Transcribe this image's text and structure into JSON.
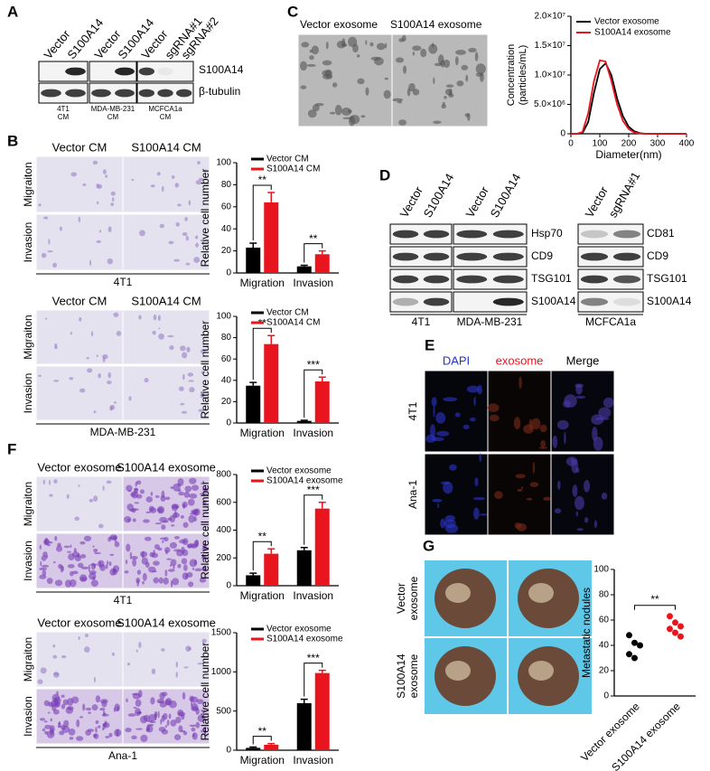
{
  "panel_labels": [
    "A",
    "B",
    "C",
    "D",
    "E",
    "F",
    "G"
  ],
  "panel_a": {
    "columns": [
      "Vector",
      "S100A14",
      "Vector",
      "S100A14",
      "Vector",
      "sgRNA#1",
      "sgRNA#2"
    ],
    "rows": [
      "S100A14",
      "β-tubulin"
    ],
    "groups": [
      [
        "4T1",
        "CM"
      ],
      [
        "MDA-MB-231",
        "CM"
      ],
      [
        "MCFCA1a",
        "CM"
      ]
    ]
  },
  "panel_b": [
    {
      "columns": [
        "Vector CM",
        "S100A14 CM"
      ],
      "rows": [
        "Migraiton",
        "Invasion"
      ],
      "cell": "4T1"
    },
    {
      "columns": [
        "Vector CM",
        "S100A14 CM"
      ],
      "rows": [
        "Migraiton",
        "Invasion"
      ],
      "cell": "MDA-MB-231"
    }
  ],
  "panel_c": {
    "images": [
      "Vector exosome",
      "S100A14 exosome"
    ]
  },
  "panel_d": [
    {
      "columns": [
        "Vector",
        "S100A14",
        "Vector",
        "S100A14"
      ],
      "rows": [
        "Hsp70",
        "CD9",
        "TSG101",
        "S100A14"
      ],
      "cells": [
        "4T1",
        "MDA-MB-231"
      ]
    },
    {
      "columns": [
        "Vector",
        "sgRNA#1"
      ],
      "rows": [
        "CD81",
        "CD9",
        "TSG101",
        "S100A14"
      ],
      "cells": [
        "MCFCA1a"
      ]
    }
  ],
  "panel_e": {
    "columns": [
      "DAPI",
      "exosome",
      "Merge"
    ],
    "rows": [
      "4T1",
      "Ana-1"
    ]
  },
  "panel_f": [
    {
      "columns": [
        "Vector exosome",
        "S100A14 exosome"
      ],
      "rows": [
        "Migraiton",
        "Invasion"
      ],
      "cell": "4T1"
    },
    {
      "columns": [
        "Vector exosome",
        "S100A14 exosome"
      ],
      "rows": [
        "Migraiton",
        "Invasion"
      ],
      "cell": "Ana-1"
    }
  ],
  "panel_g": {
    "rows": [
      [
        "Vector",
        "exosome"
      ],
      [
        "S100A14",
        "exosome"
      ]
    ]
  },
  "chart_data": [
    {
      "type": "line",
      "xlabel": "Diameter(nm)",
      "ylabel": [
        "Concentration",
        "(particles/mL)"
      ],
      "legend": "upper left",
      "x": [
        0,
        20,
        40,
        60,
        80,
        100,
        120,
        140,
        160,
        180,
        200,
        220,
        240,
        260,
        280,
        300,
        320,
        340,
        360,
        380,
        400
      ],
      "series": [
        {
          "name": "Vector exosome",
          "color": "#000000",
          "values": [
            0,
            0,
            100000,
            2000000,
            7000000,
            11000000,
            12000000,
            10000000,
            6000000,
            3000000,
            1200000,
            400000,
            100000,
            0,
            0,
            0,
            0,
            0,
            0,
            0,
            0
          ]
        },
        {
          "name": "S100A14  exosome",
          "color": "#e8141e",
          "values": [
            0,
            0,
            300000,
            3500000,
            9000000,
            12500000,
            12300000,
            9000000,
            5000000,
            2200000,
            800000,
            200000,
            50000,
            0,
            0,
            0,
            0,
            0,
            0,
            0,
            0
          ]
        }
      ],
      "xlim": [
        0,
        400
      ],
      "xticks": [
        0,
        100,
        200,
        300,
        400
      ],
      "ylim": [
        0,
        20000000
      ],
      "yticks": [
        0,
        {
          "value": 5000000,
          "label": "5.0×10⁶"
        },
        {
          "value": 10000000,
          "label": "1.0×10⁷"
        },
        {
          "value": 15000000,
          "label": "1.5×10⁷"
        },
        {
          "value": 20000000,
          "label": "2.0×10⁷"
        }
      ]
    },
    {
      "type": "bar",
      "ylabel": "Relative cell number",
      "legend": "upper left",
      "categories": [
        "Migration",
        "Invasion"
      ],
      "series": [
        {
          "name": "Vector CM",
          "color": "#000000",
          "values": [
            23,
            6
          ],
          "errors": [
            4,
            1
          ]
        },
        {
          "name": "S100A14 CM",
          "color": "#e8141e",
          "values": [
            64,
            17
          ],
          "errors": [
            9,
            3
          ]
        }
      ],
      "annotations": [
        "**",
        "**"
      ],
      "ylim": [
        0,
        100
      ],
      "yticks": [
        0,
        20,
        40,
        60,
        80,
        100
      ]
    },
    {
      "type": "bar",
      "ylabel": "Relative cell number",
      "legend": "upper left",
      "categories": [
        "Migration",
        "Invasion"
      ],
      "series": [
        {
          "name": "Vector CM",
          "color": "#000000",
          "values": [
            35,
            2
          ],
          "errors": [
            3,
            0.5
          ]
        },
        {
          "name": "S100A14 CM",
          "color": "#e8141e",
          "values": [
            74,
            39
          ],
          "errors": [
            8,
            4
          ]
        }
      ],
      "annotations": [
        "**",
        "***"
      ],
      "ylim": [
        0,
        100
      ],
      "yticks": [
        0,
        20,
        40,
        60,
        80,
        100
      ]
    },
    {
      "type": "bar",
      "ylabel": "Relative cell number",
      "legend": "upper left",
      "categories": [
        "Migration",
        "Invasion"
      ],
      "series": [
        {
          "name": "Vector exosome",
          "color": "#000000",
          "values": [
            75,
            255
          ],
          "errors": [
            15,
            20
          ]
        },
        {
          "name": "S100A14  exosome",
          "color": "#e8141e",
          "values": [
            230,
            555
          ],
          "errors": [
            35,
            45
          ]
        }
      ],
      "annotations": [
        "**",
        "***"
      ],
      "ylim": [
        0,
        800
      ],
      "yticks": [
        0,
        200,
        400,
        600,
        800
      ]
    },
    {
      "type": "bar",
      "ylabel": "Relative cell number",
      "legend": "upper left",
      "categories": [
        "Migration",
        "Invasion"
      ],
      "series": [
        {
          "name": "Vector exosome",
          "color": "#000000",
          "values": [
            30,
            600
          ],
          "errors": [
            10,
            50
          ]
        },
        {
          "name": "S100A14  exosome",
          "color": "#e8141e",
          "values": [
            70,
            985
          ],
          "errors": [
            15,
            35
          ]
        }
      ],
      "annotations": [
        "**",
        "***"
      ],
      "ylim": [
        0,
        1500
      ],
      "yticks": [
        0,
        500,
        1000,
        1500
      ]
    },
    {
      "type": "dot",
      "ylabel": "Metastatic nodules",
      "categories": [
        "Vector exosome",
        "S100A14 exosome"
      ],
      "colors": [
        "#000000",
        "#e8141e"
      ],
      "values": [
        [
          48,
          42,
          40,
          33,
          30
        ],
        [
          63,
          58,
          55,
          53,
          50,
          47
        ]
      ],
      "annotations": [
        "**"
      ],
      "ylim": [
        0,
        100
      ],
      "yticks": [
        0,
        20,
        40,
        60,
        80,
        100
      ]
    }
  ]
}
